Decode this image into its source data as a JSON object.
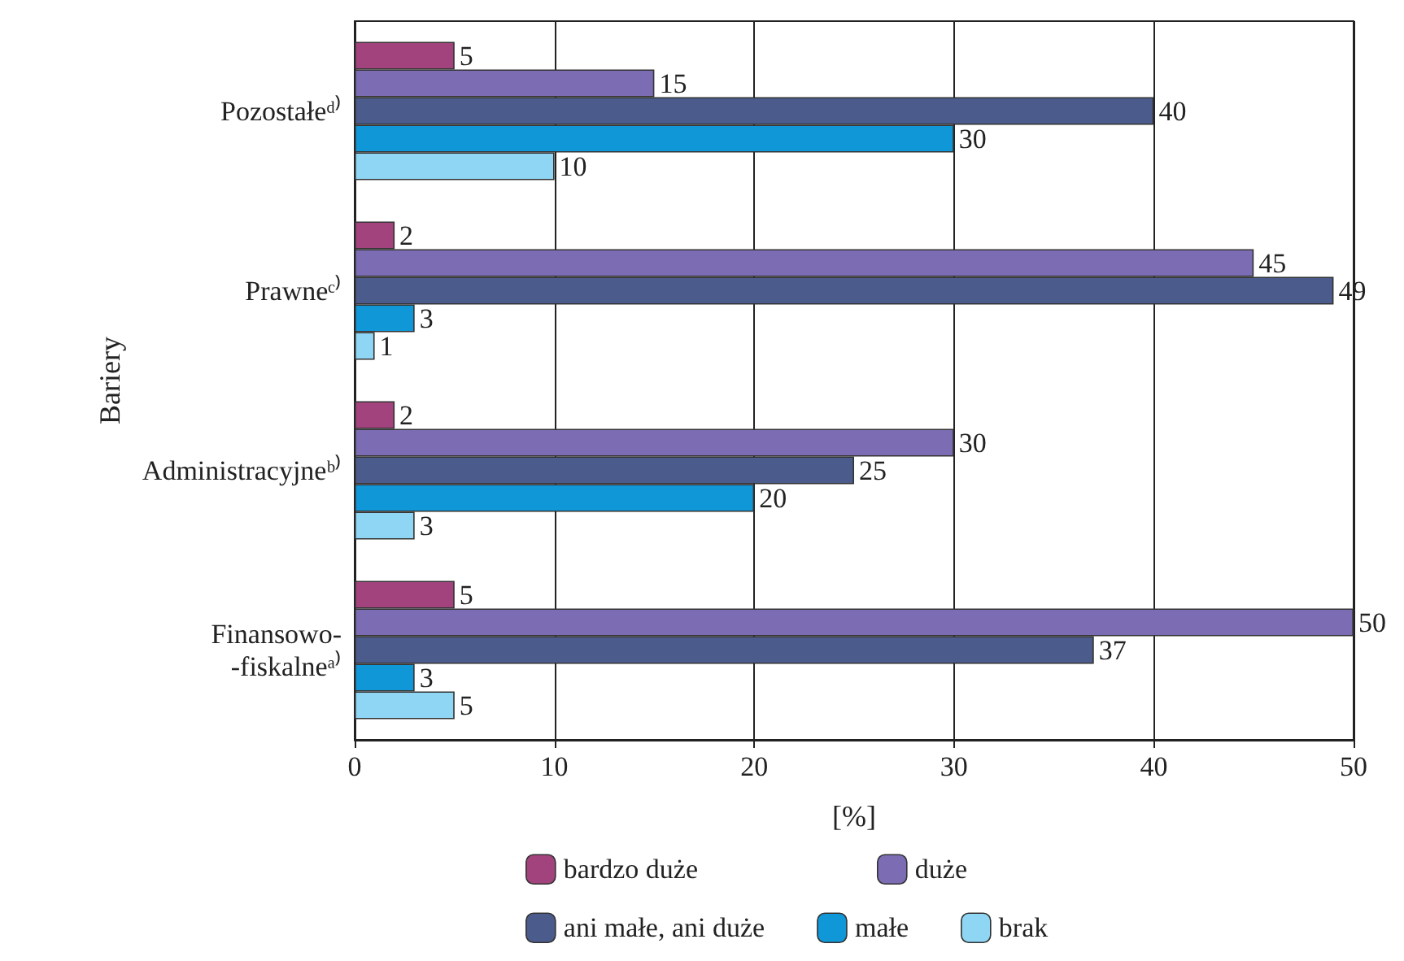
{
  "chart_data": {
    "type": "bar",
    "orientation": "horizontal",
    "xlabel": "[%]",
    "ylabel": "Bariery",
    "categories": [
      "Pozostałeᵈ⁾",
      "Prawneᶜ⁾",
      "Administracyjneᵇ⁾",
      "Finansowo-\n-fiskalneᵃ⁾"
    ],
    "series": [
      {
        "name": "bardzo duże",
        "color": "#a3437e",
        "values": [
          5,
          2,
          2,
          5
        ]
      },
      {
        "name": "duże",
        "color": "#7b6cb4",
        "values": [
          15,
          45,
          30,
          50
        ]
      },
      {
        "name": "ani małe, ani duże",
        "color": "#4b5b8c",
        "values": [
          40,
          49,
          25,
          37
        ]
      },
      {
        "name": "małe",
        "color": "#0f97d8",
        "values": [
          30,
          3,
          20,
          3
        ]
      },
      {
        "name": "brak",
        "color": "#8ed6f4",
        "values": [
          10,
          1,
          3,
          5
        ]
      }
    ],
    "xlim": [
      0,
      50
    ],
    "xticks": [
      0,
      10,
      20,
      30,
      40,
      50
    ],
    "grid": "x",
    "data_labels": true,
    "legend": "bottom"
  }
}
